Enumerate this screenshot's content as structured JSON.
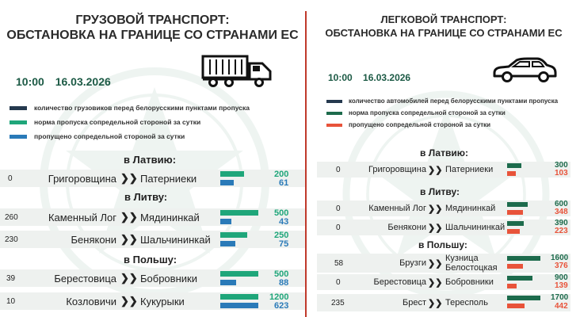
{
  "colors": {
    "dark": "#25394e",
    "green": "#1fa67a",
    "blue": "#2a7ab8",
    "darkgreen": "#1d6b4c",
    "red": "#e8533a",
    "datetime": "#1c5a45"
  },
  "left": {
    "title_line1": "ГРУЗОВОЙ ТРАНСПОРТ:",
    "title_line2": "ОБСТАНОВКА НА ГРАНИЦЕ СО СТРАНАМИ ЕС",
    "icon": "truck-icon",
    "time": "10:00",
    "date": "16.03.2026",
    "legend": [
      {
        "label": "количество грузовиков перед белорусскими пунктами пропуска",
        "color": "#25394e"
      },
      {
        "label": "норма пропуска сопредельной стороной за сутки",
        "color": "#1fa67a"
      },
      {
        "label": "пропущено сопредельной стороной за сутки",
        "color": "#2a7ab8"
      }
    ],
    "sections": [
      {
        "title": "в Латвию:",
        "rows": [
          {
            "count": "0",
            "from": "Григоровщина",
            "to": "Патерниеки",
            "norm": 200,
            "passed": 61
          }
        ]
      },
      {
        "title": "в Литву:",
        "rows": [
          {
            "count": "260",
            "from": "Каменный Лог",
            "to": "Мядининкай",
            "norm": 500,
            "passed": 43
          },
          {
            "count": "230",
            "from": "Бенякони",
            "to": "Шальчининкай",
            "norm": 250,
            "passed": 75
          }
        ]
      },
      {
        "title": "в Польшу:",
        "rows": [
          {
            "count": "39",
            "from": "Берестовица",
            "to": "Бобровники",
            "norm": 500,
            "passed": 88
          },
          {
            "count": "10",
            "from": "Козловичи",
            "to": "Кукурыки",
            "norm": 1200,
            "passed": 623
          }
        ]
      }
    ]
  },
  "right": {
    "title_line1": "ЛЕГКОВОЙ ТРАНСПОРТ:",
    "title_line2": "ОБСТАНОВКА НА ГРАНИЦЕ СО СТРАНАМИ ЕС",
    "icon": "car-icon",
    "time": "10:00",
    "date": "16.03.2026",
    "legend": [
      {
        "label": "количество автомобилей перед белорусскими пунктами пропуска",
        "color": "#25394e"
      },
      {
        "label": "норма пропуска сопредельной стороной за сутки",
        "color": "#1d6b4c"
      },
      {
        "label": "пропущено сопредельной стороной за сутки",
        "color": "#e8533a"
      }
    ],
    "sections": [
      {
        "title": "в Латвию:",
        "rows": [
          {
            "count": "0",
            "from": "Григоровщина",
            "to": "Патерниеки",
            "norm": 300,
            "passed": 103
          }
        ]
      },
      {
        "title": "в Литву:",
        "rows": [
          {
            "count": "0",
            "from": "Каменный Лог",
            "to": "Мядининкай",
            "norm": 600,
            "passed": 348
          },
          {
            "count": "0",
            "from": "Бенякони",
            "to": "Шальчининкай",
            "norm": 390,
            "passed": 223
          }
        ]
      },
      {
        "title": "в Польшу:",
        "rows": [
          {
            "count": "58",
            "from": "Брузги",
            "to": "Кузница Белостоцкая",
            "norm": 1600,
            "passed": 376
          },
          {
            "count": "0",
            "from": "Берестовица",
            "to": "Бобровники",
            "norm": 900,
            "passed": 139
          },
          {
            "count": "235",
            "from": "Брест",
            "to": "Тересполь",
            "norm": 1700,
            "passed": 442
          }
        ]
      }
    ]
  }
}
